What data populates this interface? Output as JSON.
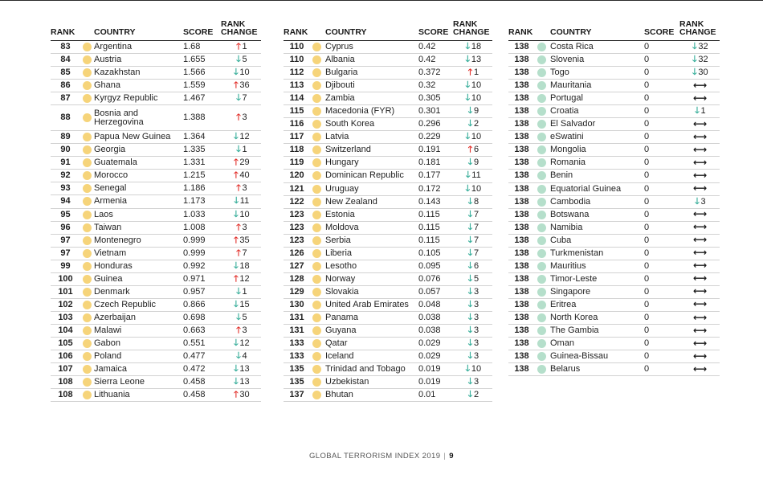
{
  "headers": {
    "rank": "RANK",
    "country": "COUNTRY",
    "score": "SCORE",
    "rank_change_1": "RANK",
    "rank_change_2": "CHANGE"
  },
  "colors": {
    "dot_yellow": "#f6d47a",
    "dot_green": "#b5dfcb",
    "arrow_up": "#e2302b",
    "arrow_down": "#35ad99"
  },
  "arrow_glyphs": {
    "up": "🡑",
    "down": "🡓",
    "same": "⟷"
  },
  "columns": [
    [
      {
        "rank": "83",
        "country": "Argentina",
        "score": "1.68",
        "dir": "up",
        "change": "1",
        "dot": "yellow"
      },
      {
        "rank": "84",
        "country": "Austria",
        "score": "1.655",
        "dir": "down",
        "change": "5",
        "dot": "yellow"
      },
      {
        "rank": "85",
        "country": "Kazakhstan",
        "score": "1.566",
        "dir": "down",
        "change": "10",
        "dot": "yellow"
      },
      {
        "rank": "86",
        "country": "Ghana",
        "score": "1.559",
        "dir": "up",
        "change": "36",
        "dot": "yellow"
      },
      {
        "rank": "87",
        "country": "Kyrgyz Republic",
        "score": "1.467",
        "dir": "down",
        "change": "7",
        "dot": "yellow"
      },
      {
        "rank": "88",
        "country": "Bosnia and Herzegovina",
        "country_line1": "Bosnia and",
        "country_line2": "Herzegovina",
        "score": "1.388",
        "dir": "up",
        "change": "3",
        "dot": "yellow"
      },
      {
        "rank": "89",
        "country": "Papua New Guinea",
        "score": "1.364",
        "dir": "down",
        "change": "12",
        "dot": "yellow"
      },
      {
        "rank": "90",
        "country": "Georgia",
        "score": "1.335",
        "dir": "down",
        "change": "1",
        "dot": "yellow"
      },
      {
        "rank": "91",
        "country": "Guatemala",
        "score": "1.331",
        "dir": "up",
        "change": "29",
        "dot": "yellow"
      },
      {
        "rank": "92",
        "country": "Morocco",
        "score": "1.215",
        "dir": "up",
        "change": "40",
        "dot": "yellow"
      },
      {
        "rank": "93",
        "country": "Senegal",
        "score": "1.186",
        "dir": "up",
        "change": "3",
        "dot": "yellow"
      },
      {
        "rank": "94",
        "country": "Armenia",
        "score": "1.173",
        "dir": "down",
        "change": "11",
        "dot": "yellow"
      },
      {
        "rank": "95",
        "country": "Laos",
        "score": "1.033",
        "dir": "down",
        "change": "10",
        "dot": "yellow"
      },
      {
        "rank": "96",
        "country": "Taiwan",
        "score": "1.008",
        "dir": "up",
        "change": "3",
        "dot": "yellow"
      },
      {
        "rank": "97",
        "country": "Montenegro",
        "score": "0.999",
        "dir": "up",
        "change": "35",
        "dot": "yellow"
      },
      {
        "rank": "97",
        "country": "Vietnam",
        "score": "0.999",
        "dir": "up",
        "change": "7",
        "dot": "yellow"
      },
      {
        "rank": "99",
        "country": "Honduras",
        "score": "0.992",
        "dir": "down",
        "change": "18",
        "dot": "yellow"
      },
      {
        "rank": "100",
        "country": "Guinea",
        "score": "0.971",
        "dir": "up",
        "change": "12",
        "dot": "yellow"
      },
      {
        "rank": "101",
        "country": "Denmark",
        "score": "0.957",
        "dir": "down",
        "change": "1",
        "dot": "yellow"
      },
      {
        "rank": "102",
        "country": "Czech Republic",
        "score": "0.866",
        "dir": "down",
        "change": "15",
        "dot": "yellow"
      },
      {
        "rank": "103",
        "country": "Azerbaijan",
        "score": "0.698",
        "dir": "down",
        "change": "5",
        "dot": "yellow"
      },
      {
        "rank": "104",
        "country": "Malawi",
        "score": "0.663",
        "dir": "up",
        "change": "3",
        "dot": "yellow"
      },
      {
        "rank": "105",
        "country": "Gabon",
        "score": "0.551",
        "dir": "down",
        "change": "12",
        "dot": "yellow"
      },
      {
        "rank": "106",
        "country": "Poland",
        "score": "0.477",
        "dir": "down",
        "change": "4",
        "dot": "yellow"
      },
      {
        "rank": "107",
        "country": "Jamaica",
        "score": "0.472",
        "dir": "down",
        "change": "13",
        "dot": "yellow"
      },
      {
        "rank": "108",
        "country": "Sierra Leone",
        "score": "0.458",
        "dir": "down",
        "change": "13",
        "dot": "yellow"
      },
      {
        "rank": "108",
        "country": "Lithuania",
        "score": "0.458",
        "dir": "up",
        "change": "30",
        "dot": "yellow"
      }
    ],
    [
      {
        "rank": "110",
        "country": "Cyprus",
        "score": "0.42",
        "dir": "down",
        "change": "18",
        "dot": "yellow"
      },
      {
        "rank": "110",
        "country": "Albania",
        "score": "0.42",
        "dir": "down",
        "change": "13",
        "dot": "yellow"
      },
      {
        "rank": "112",
        "country": "Bulgaria",
        "score": "0.372",
        "dir": "up",
        "change": "1",
        "dot": "yellow"
      },
      {
        "rank": "113",
        "country": "Djibouti",
        "score": "0.32",
        "dir": "down",
        "change": "10",
        "dot": "yellow"
      },
      {
        "rank": "114",
        "country": "Zambia",
        "score": "0.305",
        "dir": "down",
        "change": "10",
        "dot": "yellow"
      },
      {
        "rank": "115",
        "country": "Macedonia (FYR)",
        "score": "0.301",
        "dir": "down",
        "change": "9",
        "dot": "yellow"
      },
      {
        "rank": "116",
        "country": "South Korea",
        "score": "0.296",
        "dir": "down",
        "change": "2",
        "dot": "yellow"
      },
      {
        "rank": "117",
        "country": "Latvia",
        "score": "0.229",
        "dir": "down",
        "change": "10",
        "dot": "yellow"
      },
      {
        "rank": "118",
        "country": "Switzerland",
        "score": "0.191",
        "dir": "up",
        "change": "6",
        "dot": "yellow"
      },
      {
        "rank": "119",
        "country": "Hungary",
        "score": "0.181",
        "dir": "down",
        "change": "9",
        "dot": "yellow"
      },
      {
        "rank": "120",
        "country": "Dominican Republic",
        "score": "0.177",
        "dir": "down",
        "change": "11",
        "dot": "yellow"
      },
      {
        "rank": "121",
        "country": "Uruguay",
        "score": "0.172",
        "dir": "down",
        "change": "10",
        "dot": "yellow"
      },
      {
        "rank": "122",
        "country": "New Zealand",
        "score": "0.143",
        "dir": "down",
        "change": "8",
        "dot": "yellow"
      },
      {
        "rank": "123",
        "country": "Estonia",
        "score": "0.115",
        "dir": "down",
        "change": "7",
        "dot": "yellow"
      },
      {
        "rank": "123",
        "country": "Moldova",
        "score": "0.115",
        "dir": "down",
        "change": "7",
        "dot": "yellow"
      },
      {
        "rank": "123",
        "country": "Serbia",
        "score": "0.115",
        "dir": "down",
        "change": "7",
        "dot": "yellow"
      },
      {
        "rank": "126",
        "country": "Liberia",
        "score": "0.105",
        "dir": "down",
        "change": "7",
        "dot": "yellow"
      },
      {
        "rank": "127",
        "country": "Lesotho",
        "score": "0.095",
        "dir": "down",
        "change": "6",
        "dot": "yellow"
      },
      {
        "rank": "128",
        "country": "Norway",
        "score": "0.076",
        "dir": "down",
        "change": "5",
        "dot": "yellow"
      },
      {
        "rank": "129",
        "country": "Slovakia",
        "score": "0.057",
        "dir": "down",
        "change": "3",
        "dot": "yellow"
      },
      {
        "rank": "130",
        "country": "United Arab Emirates",
        "score": "0.048",
        "dir": "down",
        "change": "3",
        "dot": "yellow"
      },
      {
        "rank": "131",
        "country": "Panama",
        "score": "0.038",
        "dir": "down",
        "change": "3",
        "dot": "yellow"
      },
      {
        "rank": "131",
        "country": "Guyana",
        "score": "0.038",
        "dir": "down",
        "change": "3",
        "dot": "yellow"
      },
      {
        "rank": "133",
        "country": "Qatar",
        "score": "0.029",
        "dir": "down",
        "change": "3",
        "dot": "yellow"
      },
      {
        "rank": "133",
        "country": "Iceland",
        "score": "0.029",
        "dir": "down",
        "change": "3",
        "dot": "yellow"
      },
      {
        "rank": "135",
        "country": "Trinidad and Tobago",
        "score": "0.019",
        "dir": "down",
        "change": "10",
        "dot": "yellow"
      },
      {
        "rank": "135",
        "country": "Uzbekistan",
        "score": "0.019",
        "dir": "down",
        "change": "3",
        "dot": "yellow"
      },
      {
        "rank": "137",
        "country": "Bhutan",
        "score": "0.01",
        "dir": "down",
        "change": "2",
        "dot": "yellow"
      }
    ],
    [
      {
        "rank": "138",
        "country": "Costa Rica",
        "score": "0",
        "dir": "down",
        "change": "32",
        "dot": "green"
      },
      {
        "rank": "138",
        "country": "Slovenia",
        "score": "0",
        "dir": "down",
        "change": "32",
        "dot": "green"
      },
      {
        "rank": "138",
        "country": "Togo",
        "score": "0",
        "dir": "down",
        "change": "30",
        "dot": "green"
      },
      {
        "rank": "138",
        "country": "Mauritania",
        "score": "0",
        "dir": "same",
        "change": "",
        "dot": "green"
      },
      {
        "rank": "138",
        "country": "Portugal",
        "score": "0",
        "dir": "same",
        "change": "",
        "dot": "green"
      },
      {
        "rank": "138",
        "country": "Croatia",
        "score": "0",
        "dir": "down",
        "change": "1",
        "dot": "green"
      },
      {
        "rank": "138",
        "country": "El Salvador",
        "score": "0",
        "dir": "same",
        "change": "",
        "dot": "green"
      },
      {
        "rank": "138",
        "country": "eSwatini",
        "score": "0",
        "dir": "same",
        "change": "",
        "dot": "green"
      },
      {
        "rank": "138",
        "country": "Mongolia",
        "score": "0",
        "dir": "same",
        "change": "",
        "dot": "green"
      },
      {
        "rank": "138",
        "country": "Romania",
        "score": "0",
        "dir": "same",
        "change": "",
        "dot": "green"
      },
      {
        "rank": "138",
        "country": "Benin",
        "score": "0",
        "dir": "same",
        "change": "",
        "dot": "green"
      },
      {
        "rank": "138",
        "country": "Equatorial Guinea",
        "score": "0",
        "dir": "same",
        "change": "",
        "dot": "green"
      },
      {
        "rank": "138",
        "country": "Cambodia",
        "score": "0",
        "dir": "down",
        "change": "3",
        "dot": "green"
      },
      {
        "rank": "138",
        "country": "Botswana",
        "score": "0",
        "dir": "same",
        "change": "",
        "dot": "green"
      },
      {
        "rank": "138",
        "country": "Namibia",
        "score": "0",
        "dir": "same",
        "change": "",
        "dot": "green"
      },
      {
        "rank": "138",
        "country": "Cuba",
        "score": "0",
        "dir": "same",
        "change": "",
        "dot": "green"
      },
      {
        "rank": "138",
        "country": "Turkmenistan",
        "score": "0",
        "dir": "same",
        "change": "",
        "dot": "green"
      },
      {
        "rank": "138",
        "country": "Mauritius",
        "score": "0",
        "dir": "same",
        "change": "",
        "dot": "green"
      },
      {
        "rank": "138",
        "country": "Timor-Leste",
        "score": "0",
        "dir": "same",
        "change": "",
        "dot": "green"
      },
      {
        "rank": "138",
        "country": "Singapore",
        "score": "0",
        "dir": "same",
        "change": "",
        "dot": "green"
      },
      {
        "rank": "138",
        "country": "Eritrea",
        "score": "0",
        "dir": "same",
        "change": "",
        "dot": "green"
      },
      {
        "rank": "138",
        "country": "North Korea",
        "score": "0",
        "dir": "same",
        "change": "",
        "dot": "green"
      },
      {
        "rank": "138",
        "country": "The Gambia",
        "score": "0",
        "dir": "same",
        "change": "",
        "dot": "green"
      },
      {
        "rank": "138",
        "country": "Oman",
        "score": "0",
        "dir": "same",
        "change": "",
        "dot": "green"
      },
      {
        "rank": "138",
        "country": "Guinea-Bissau",
        "score": "0",
        "dir": "same",
        "change": "",
        "dot": "green"
      },
      {
        "rank": "138",
        "country": "Belarus",
        "score": "0",
        "dir": "same",
        "change": "",
        "dot": "green"
      }
    ]
  ],
  "footer": {
    "title": "GLOBAL TERRORISM INDEX 2019",
    "separator": "|",
    "page": "9"
  }
}
